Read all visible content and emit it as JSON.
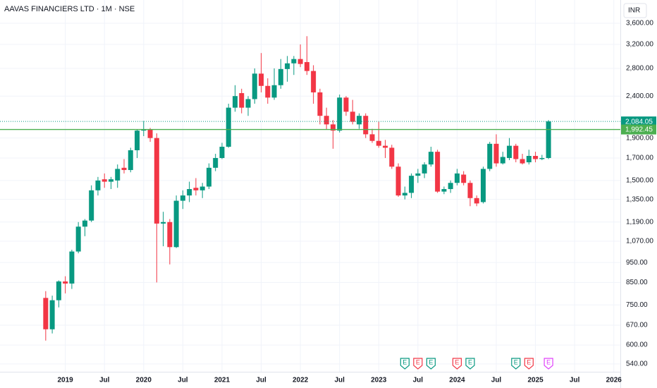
{
  "chart_data": {
    "type": "candlestick",
    "title": "AAVAS FINANCIERS LTD · 1M · NSE",
    "currency": "INR",
    "up_color": "#089981",
    "down_color": "#f23645",
    "log_scale": true,
    "grid": true,
    "x": [
      "2018-10",
      "2018-11",
      "2018-12",
      "2019-01",
      "2019-02",
      "2019-03",
      "2019-04",
      "2019-05",
      "2019-06",
      "2019-07",
      "2019-08",
      "2019-09",
      "2019-10",
      "2019-11",
      "2019-12",
      "2020-01",
      "2020-02",
      "2020-03",
      "2020-04",
      "2020-05",
      "2020-06",
      "2020-07",
      "2020-08",
      "2020-09",
      "2020-10",
      "2020-11",
      "2020-12",
      "2021-01",
      "2021-02",
      "2021-03",
      "2021-04",
      "2021-05",
      "2021-06",
      "2021-07",
      "2021-08",
      "2021-09",
      "2021-10",
      "2021-11",
      "2021-12",
      "2022-01",
      "2022-02",
      "2022-03",
      "2022-04",
      "2022-05",
      "2022-06",
      "2022-07",
      "2022-08",
      "2022-09",
      "2022-10",
      "2022-11",
      "2022-12",
      "2023-01",
      "2023-02",
      "2023-03",
      "2023-04",
      "2023-05",
      "2023-06",
      "2023-07",
      "2023-08",
      "2023-09",
      "2023-10",
      "2023-11",
      "2023-12",
      "2024-01",
      "2024-02",
      "2024-03",
      "2024-04",
      "2024-05",
      "2024-06",
      "2024-07",
      "2024-08",
      "2024-09",
      "2024-10",
      "2024-11",
      "2024-12",
      "2025-01",
      "2025-02",
      "2025-03"
    ],
    "open": [
      780,
      655,
      770,
      855,
      845,
      1010,
      1160,
      1200,
      1420,
      1510,
      1490,
      1500,
      1610,
      1590,
      1775,
      1980,
      1990,
      1900,
      1180,
      1190,
      1035,
      1340,
      1380,
      1440,
      1420,
      1450,
      1610,
      1700,
      1810,
      2250,
      2440,
      2250,
      2360,
      2720,
      2540,
      2380,
      2550,
      2790,
      2880,
      2950,
      2900,
      2760,
      2450,
      2150,
      2050,
      1980,
      2380,
      2200,
      2050,
      2150,
      1940,
      1870,
      1820,
      1800,
      1620,
      1380,
      1400,
      1540,
      1560,
      1640,
      1760,
      1410,
      1430,
      1480,
      1550,
      1480,
      1360,
      1330,
      1600,
      1840,
      1650,
      1700,
      1820,
      1690,
      1660,
      1720,
      1690,
      1700
    ],
    "high": [
      810,
      790,
      860,
      880,
      1020,
      1190,
      1210,
      1460,
      1530,
      1560,
      1530,
      1640,
      1690,
      1800,
      1990,
      2090,
      2010,
      1950,
      1260,
      1210,
      1380,
      1420,
      1490,
      1520,
      1480,
      1650,
      1740,
      1850,
      2300,
      2550,
      2500,
      2400,
      2800,
      3050,
      2650,
      2800,
      2950,
      3000,
      3000,
      3200,
      3350,
      2850,
      2500,
      2250,
      2100,
      2420,
      2400,
      2350,
      2180,
      2180,
      2000,
      2080,
      1880,
      1830,
      1650,
      1450,
      1560,
      1600,
      1660,
      1810,
      1780,
      1450,
      1500,
      1600,
      1580,
      1500,
      1380,
      1620,
      1860,
      1940,
      1760,
      1900,
      1840,
      1740,
      1780,
      1760,
      1730,
      2100
    ],
    "low": [
      615,
      640,
      740,
      800,
      820,
      1000,
      1100,
      1190,
      1380,
      1440,
      1430,
      1440,
      1560,
      1570,
      1700,
      1920,
      1860,
      850,
      1040,
      940,
      1030,
      1280,
      1330,
      1380,
      1360,
      1430,
      1580,
      1690,
      1800,
      2200,
      2180,
      2150,
      2300,
      2450,
      2300,
      2350,
      2500,
      2600,
      2700,
      2820,
      2700,
      2300,
      2050,
      1990,
      1790,
      1960,
      2150,
      2050,
      2000,
      1900,
      1850,
      1800,
      1700,
      1600,
      1370,
      1350,
      1360,
      1480,
      1520,
      1620,
      1400,
      1390,
      1400,
      1460,
      1460,
      1300,
      1300,
      1320,
      1580,
      1620,
      1640,
      1680,
      1660,
      1640,
      1640,
      1660,
      1680,
      1690
    ],
    "close": [
      655,
      770,
      855,
      845,
      1010,
      1160,
      1200,
      1420,
      1500,
      1490,
      1510,
      1600,
      1590,
      1775,
      1980,
      1995,
      1900,
      1180,
      1190,
      1035,
      1340,
      1380,
      1430,
      1420,
      1450,
      1610,
      1700,
      1810,
      2250,
      2400,
      2250,
      2360,
      2720,
      2540,
      2380,
      2550,
      2790,
      2880,
      2950,
      2870,
      2760,
      2450,
      2150,
      2050,
      1980,
      2380,
      2200,
      2080,
      2150,
      1940,
      1870,
      1820,
      1800,
      1620,
      1380,
      1400,
      1540,
      1560,
      1640,
      1760,
      1410,
      1430,
      1480,
      1560,
      1480,
      1360,
      1320,
      1600,
      1840,
      1650,
      1710,
      1820,
      1690,
      1650,
      1720,
      1690,
      1700,
      2084.05
    ],
    "ylim": [
      517,
      4098
    ],
    "yticks": [
      {
        "value": 540,
        "label": "540.00"
      },
      {
        "value": 600,
        "label": "600.00"
      },
      {
        "value": 670,
        "label": "670.00"
      },
      {
        "value": 750,
        "label": "750.00"
      },
      {
        "value": 850,
        "label": "850.00"
      },
      {
        "value": 950,
        "label": "950.00"
      },
      {
        "value": 1070,
        "label": "1,070.00"
      },
      {
        "value": 1190,
        "label": "1,190.00"
      },
      {
        "value": 1350,
        "label": "1,350.00"
      },
      {
        "value": 1500,
        "label": "1,500.00"
      },
      {
        "value": 1700,
        "label": "1,700.00"
      },
      {
        "value": 1900,
        "label": "1,900.00"
      },
      {
        "value": 2400,
        "label": "2,400.00"
      },
      {
        "value": 2800,
        "label": "2,800.00"
      },
      {
        "value": 3200,
        "label": "3,200.00"
      },
      {
        "value": 3600,
        "label": "3,600.00"
      }
    ],
    "xlim": [
      "2018-03",
      "2026-02"
    ],
    "xticks": [
      {
        "value": "2019-01",
        "label": "2019"
      },
      {
        "value": "2019-07",
        "label": "Jul"
      },
      {
        "value": "2020-01",
        "label": "2020"
      },
      {
        "value": "2020-07",
        "label": "Jul"
      },
      {
        "value": "2021-01",
        "label": "2021"
      },
      {
        "value": "2021-07",
        "label": "Jul"
      },
      {
        "value": "2022-01",
        "label": "2022"
      },
      {
        "value": "2022-07",
        "label": "Jul"
      },
      {
        "value": "2023-01",
        "label": "2023"
      },
      {
        "value": "2023-07",
        "label": "Jul"
      },
      {
        "value": "2024-01",
        "label": "2024"
      },
      {
        "value": "2024-07",
        "label": "Jul"
      },
      {
        "value": "2025-01",
        "label": "2025"
      },
      {
        "value": "2025-07",
        "label": "Jul"
      },
      {
        "value": "2026-01",
        "label": "2026"
      }
    ],
    "price_lines": [
      {
        "value": 2084.05,
        "label": "2,084.05",
        "color": "#089981",
        "style": "dotted"
      },
      {
        "value": 1992.45,
        "label": "1,992.45",
        "color": "#4caf50",
        "style": "solid"
      }
    ],
    "events": [
      {
        "x": "2023-05",
        "label": "E",
        "color": "#089981"
      },
      {
        "x": "2023-07",
        "label": "E",
        "color": "#f23645"
      },
      {
        "x": "2023-09",
        "label": "E",
        "color": "#089981"
      },
      {
        "x": "2024-01",
        "label": "E",
        "color": "#f23645"
      },
      {
        "x": "2024-03",
        "label": "E",
        "color": "#089981"
      },
      {
        "x": "2024-10",
        "label": "E",
        "color": "#089981"
      },
      {
        "x": "2024-12",
        "label": "E",
        "color": "#f23645"
      },
      {
        "x": "2025-03",
        "label": "E",
        "color": "#e040fb"
      }
    ]
  }
}
